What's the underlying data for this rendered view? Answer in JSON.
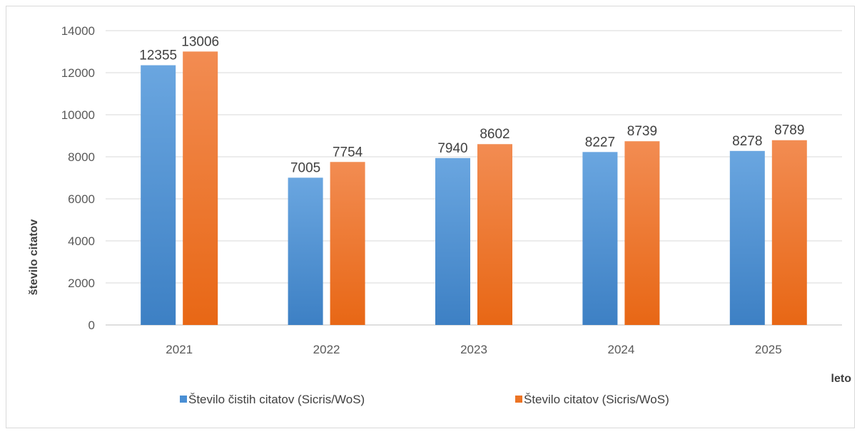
{
  "chart_data": {
    "type": "bar",
    "title": "",
    "xlabel": "leto",
    "ylabel": "število citatov",
    "categories": [
      "2021",
      "2022",
      "2023",
      "2024",
      "2025"
    ],
    "series": [
      {
        "name": "Število čistih citatov (Sicris/WoS)",
        "values": [
          12355,
          7005,
          7940,
          8227,
          8278
        ],
        "color": "#4a8fd4"
      },
      {
        "name": "Število citatov (Sicris/WoS)",
        "values": [
          13006,
          7754,
          8602,
          8739,
          8789
        ],
        "color": "#ec7424"
      }
    ],
    "ylim": [
      0,
      14000
    ],
    "yticks": [
      "0",
      "2000",
      "4000",
      "6000",
      "8000",
      "10000",
      "12000",
      "14000"
    ],
    "grid": true,
    "legend_position": "bottom"
  }
}
